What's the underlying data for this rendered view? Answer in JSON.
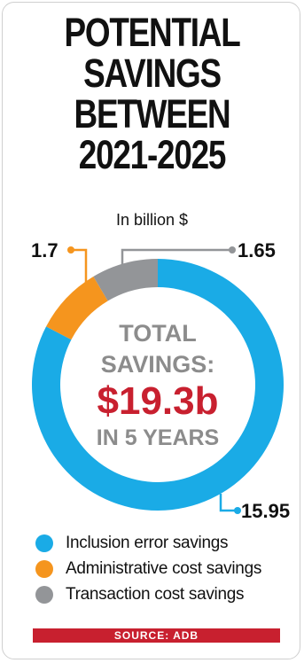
{
  "title_lines": [
    "POTENTIAL",
    "SAVINGS",
    "BETWEEN",
    "2021-2025"
  ],
  "subtitle": "In billion $",
  "center": {
    "line1": "TOTAL",
    "line2": "SAVINGS:",
    "amount": "$19.3b",
    "line4": "IN 5 YEARS"
  },
  "source": "SOURCE: ADB",
  "colors": {
    "inclusion": "#1aabe6",
    "administrative": "#f5951e",
    "transaction": "#939598",
    "amount": "#c8202f",
    "center_text": "#8c8c8c"
  },
  "chart_data": {
    "type": "pie",
    "title": "POTENTIAL SAVINGS BETWEEN 2021-2025",
    "subtitle": "In billion $",
    "donut": true,
    "series": [
      {
        "name": "Inclusion error savings",
        "value": 15.95,
        "label": "15.95",
        "color": "#1aabe6"
      },
      {
        "name": "Administrative cost savings",
        "value": 1.7,
        "label": "1.7",
        "color": "#f5951e"
      },
      {
        "name": "Transaction cost savings",
        "value": 1.65,
        "label": "1.65",
        "color": "#939598"
      }
    ],
    "legend_position": "bottom"
  }
}
